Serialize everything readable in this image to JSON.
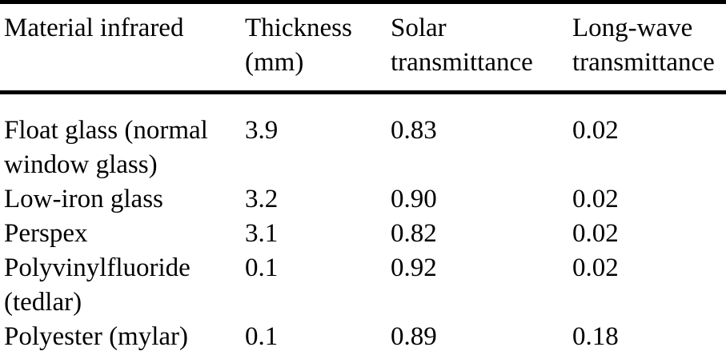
{
  "table": {
    "columns": [
      "Material infrared",
      "Thickness (mm)",
      "Solar transmittance",
      "Long-wave transmittance"
    ],
    "rows": [
      [
        "Float glass (normal window glass)",
        "3.9",
        "0.83",
        "0.02"
      ],
      [
        "Low-iron glass",
        "3.2",
        "0.90",
        "0.02"
      ],
      [
        "Perspex",
        "3.1",
        "0.82",
        "0.02"
      ],
      [
        "Polyvinylfluoride (tedlar)",
        "0.1",
        "0.92",
        "0.02"
      ],
      [
        "Polyester (mylar)",
        "0.1",
        "0.89",
        "0.18"
      ]
    ]
  },
  "chart_data": {
    "type": "table",
    "columns": [
      "Material infrared",
      "Thickness (mm)",
      "Solar transmittance",
      "Long-wave transmittance"
    ],
    "rows": [
      {
        "material": "Float glass (normal window glass)",
        "thickness_mm": 3.9,
        "solar_transmittance": 0.83,
        "long_wave_transmittance": 0.02
      },
      {
        "material": "Low-iron glass",
        "thickness_mm": 3.2,
        "solar_transmittance": 0.9,
        "long_wave_transmittance": 0.02
      },
      {
        "material": "Perspex",
        "thickness_mm": 3.1,
        "solar_transmittance": 0.82,
        "long_wave_transmittance": 0.02
      },
      {
        "material": "Polyvinylfluoride (tedlar)",
        "thickness_mm": 0.1,
        "solar_transmittance": 0.92,
        "long_wave_transmittance": 0.02
      },
      {
        "material": "Polyester (mylar)",
        "thickness_mm": 0.1,
        "solar_transmittance": 0.89,
        "long_wave_transmittance": 0.18
      }
    ]
  },
  "colors": {
    "background": "#ffffff",
    "text": "#000000",
    "rule": "#000000"
  }
}
